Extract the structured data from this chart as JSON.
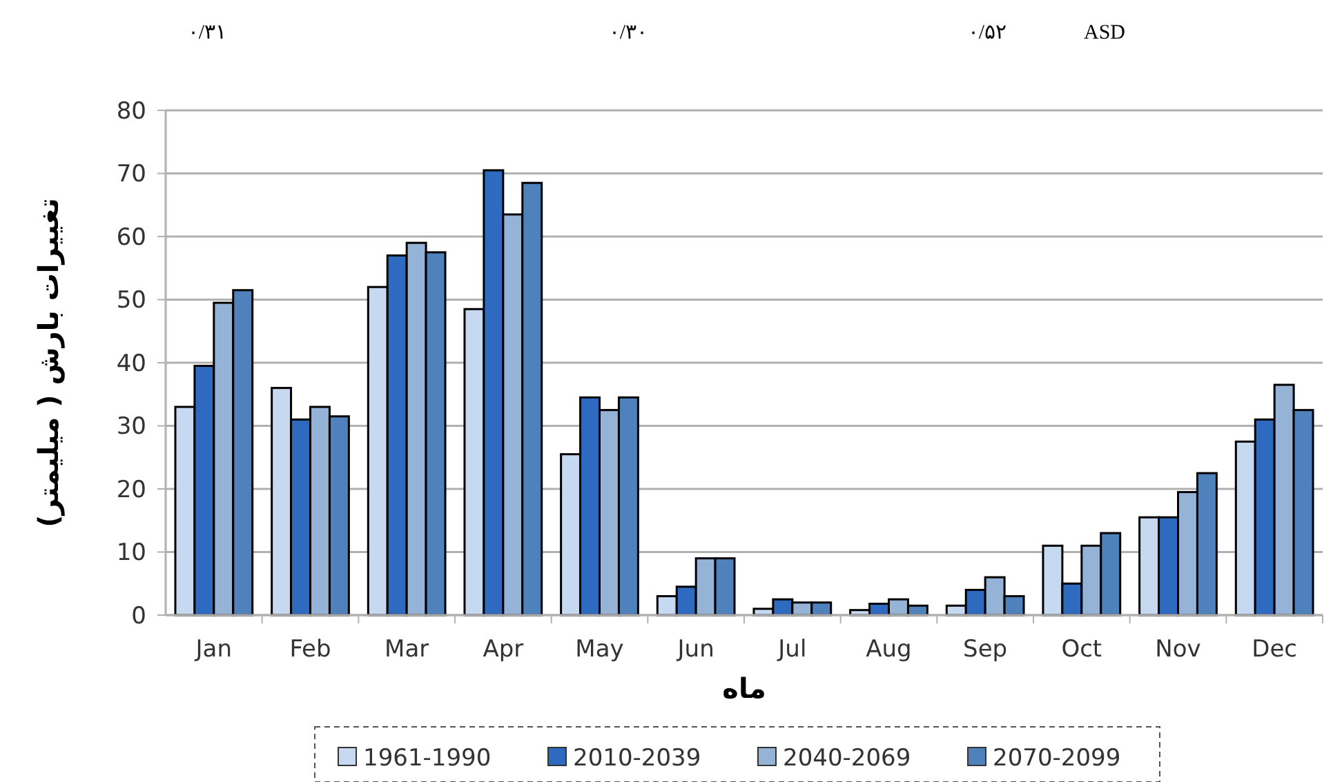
{
  "chart_data": {
    "type": "bar",
    "xlabel": "ماه",
    "ylabel": "تغییرات بارش ( میلیمتر)",
    "annotations": [
      "۰/۳۱",
      "۰/۳۰",
      "۰/۵۲",
      "ASD"
    ],
    "categories": [
      "Jan",
      "Feb",
      "Mar",
      "Apr",
      "May",
      "Jun",
      "Jul",
      "Aug",
      "Sep",
      "Oct",
      "Nov",
      "Dec"
    ],
    "series": [
      {
        "name": "1961-1990",
        "color": "#c6d9f1",
        "values": [
          33,
          36,
          52,
          48.5,
          25.5,
          3,
          1,
          0.8,
          1.5,
          11,
          15.5,
          27.5
        ]
      },
      {
        "name": "2010-2039",
        "color": "#2e6bc0",
        "values": [
          39.5,
          31,
          57,
          70.5,
          34.5,
          4.5,
          2.5,
          1.8,
          4,
          5,
          15.5,
          31
        ]
      },
      {
        "name": "2040-2069",
        "color": "#95b3d7",
        "values": [
          49.5,
          33,
          59,
          63.5,
          32.5,
          9,
          2,
          2.5,
          6,
          11,
          19.5,
          36.5
        ]
      },
      {
        "name": "2070-2099",
        "color": "#4f81bd",
        "values": [
          51.5,
          31.5,
          57.5,
          68.5,
          34.5,
          9,
          2,
          1.5,
          3,
          13,
          22.5,
          32.5
        ]
      }
    ],
    "ylim": [
      0,
      80
    ],
    "yticks": [
      0,
      10,
      20,
      30,
      40,
      50,
      60,
      70,
      80
    ],
    "grid": "y",
    "legend": "bottom"
  }
}
